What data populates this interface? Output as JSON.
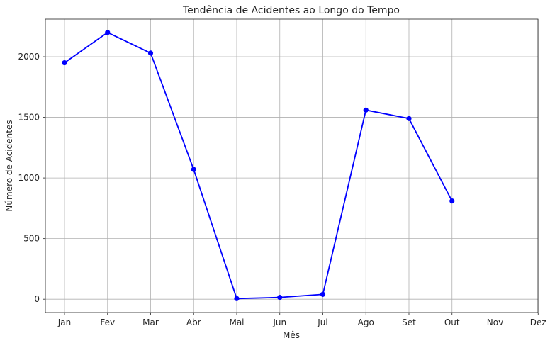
{
  "chart_data": {
    "type": "line",
    "title": "Tendência de Acidentes ao Longo do Tempo",
    "xlabel": "Mês",
    "ylabel": "Número de Acidentes",
    "categories": [
      "Jan",
      "Fev",
      "Mar",
      "Abr",
      "Mai",
      "Jun",
      "Jul",
      "Ago",
      "Set",
      "Out",
      "Nov",
      "Dez"
    ],
    "series": [
      {
        "values": [
          1950,
          2200,
          2030,
          1070,
          5,
          15,
          40,
          1560,
          1490,
          810,
          null,
          null
        ],
        "color": "#0000ff"
      }
    ],
    "yticks": [
      0,
      500,
      1000,
      1500,
      2000
    ],
    "ylim": [
      -110,
      2310
    ],
    "grid": true,
    "marker": "circle"
  }
}
